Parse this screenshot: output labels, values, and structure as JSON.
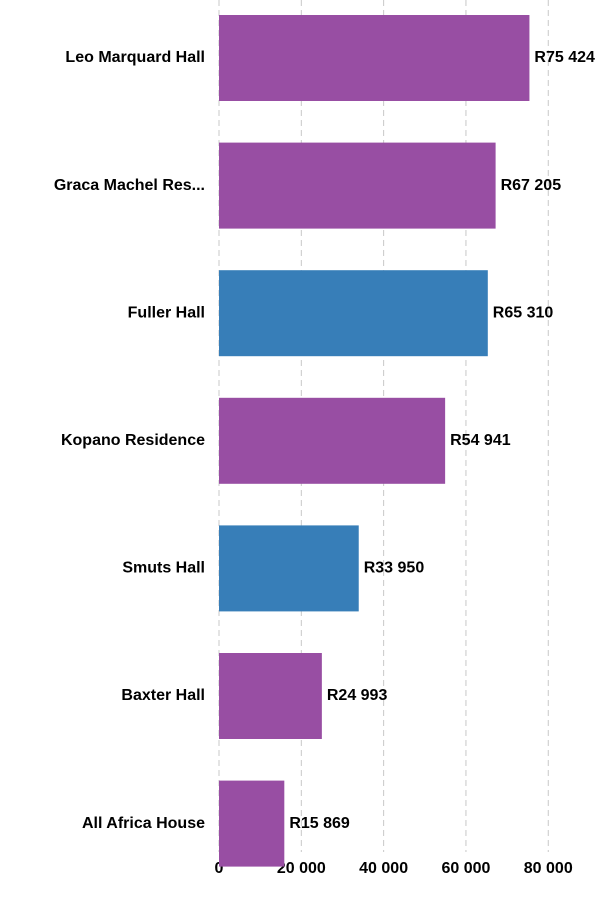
{
  "chart_data": {
    "type": "bar",
    "orientation": "horizontal",
    "categories": [
      "Leo Marquard Hall",
      "Graca Machel Res...",
      "Fuller Hall",
      "Kopano Residence",
      "Smuts Hall",
      "Baxter Hall",
      "All Africa House"
    ],
    "values": [
      75424,
      67205,
      65310,
      54941,
      33950,
      24993,
      15869
    ],
    "value_labels": [
      "R75 424",
      "R67 205",
      "R65 310",
      "R54 941",
      "R33 950",
      "R24 993",
      "R15 869"
    ],
    "colors": [
      "#984ea3",
      "#984ea3",
      "#377eb8",
      "#984ea3",
      "#377eb8",
      "#984ea3",
      "#984ea3"
    ],
    "xlim": [
      0,
      95000
    ],
    "xticks": [
      0,
      {
        "value": 20000,
        "label": "20 000"
      },
      {
        "value": 40000,
        "label": "40 000"
      },
      {
        "value": 60000,
        "label": "60 000"
      },
      {
        "value": 80000,
        "label": "80 000"
      }
    ],
    "grid": true
  }
}
